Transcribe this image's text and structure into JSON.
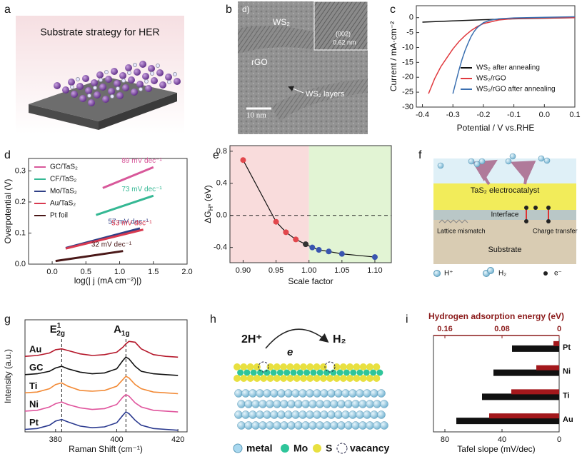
{
  "panel_labels": [
    "a",
    "b",
    "c",
    "d",
    "e",
    "f",
    "g",
    "h",
    "i"
  ],
  "panel_a": {
    "title": "Substrate strategy for HER"
  },
  "panel_b": {
    "label_d": "d)",
    "ws2": "WS₂",
    "rgo": "rGO",
    "plane": "(002)",
    "spacing": "0.62 nm",
    "layers": "WS₂ layers",
    "scale": "10 nm"
  },
  "panel_f": {
    "catalyst": "TaS₂ electrocatalyst",
    "interface": "Interface",
    "mismatch": "Lattice mismatch",
    "charge": "Charge transfer",
    "substrate": "Substrate",
    "legend": [
      "H⁺",
      "H₂",
      "e⁻"
    ]
  },
  "panel_h": {
    "reactant": "2H⁺",
    "electron": "e",
    "product": "H₂",
    "legend": [
      "metal",
      "Mo",
      "S",
      "vacancy"
    ]
  },
  "chart_data": [
    {
      "type": "line",
      "x_label": "Potential / V vs.RHE",
      "y_label": "Current / mA·cm⁻²",
      "xlim": [
        -0.42,
        0.1
      ],
      "ylim": [
        -30,
        4
      ],
      "xticks": [
        -0.4,
        -0.3,
        -0.2,
        -0.1,
        {
          "value": 0,
          "label": "0.0"
        },
        0.1
      ],
      "yticks": [
        0,
        -5,
        -10,
        -15,
        -20,
        -25,
        -30
      ],
      "legend": "lower right",
      "series": [
        {
          "name": "WS₂ after annealing",
          "color": "#111111",
          "x": [
            -0.4,
            -0.3,
            -0.2,
            -0.1,
            0.0,
            0.1
          ],
          "values": [
            -1.5,
            -1.1,
            -0.7,
            -0.4,
            -0.2,
            0
          ]
        },
        {
          "name": "WS₂/rGO",
          "color": "#e0393e",
          "x": [
            -0.38,
            -0.36,
            -0.34,
            -0.32,
            -0.3,
            -0.28,
            -0.26,
            -0.24,
            -0.22,
            -0.2,
            -0.15,
            -0.1,
            0.0,
            0.1
          ],
          "values": [
            -25.5,
            -20.5,
            -16.5,
            -13.5,
            -10.5,
            -8,
            -6,
            -4.3,
            -3,
            -2,
            -0.8,
            -0.3,
            -0.1,
            0
          ]
        },
        {
          "name": "WS₂/rGO after annealing",
          "color": "#3a6fb0",
          "x": [
            -0.3,
            -0.29,
            -0.28,
            -0.27,
            -0.26,
            -0.25,
            -0.24,
            -0.23,
            -0.22,
            -0.2,
            -0.18,
            -0.15,
            -0.1,
            0.0,
            0.1
          ],
          "values": [
            -25.5,
            -21.5,
            -17.5,
            -14,
            -11,
            -8.5,
            -6.3,
            -4.6,
            -3.3,
            -1.7,
            -0.9,
            -0.4,
            -0.1,
            0.1,
            0.3
          ]
        }
      ]
    },
    {
      "type": "line",
      "x_label": "log(| j (mA cm⁻²)|)",
      "y_label": "Overpotential (V)",
      "xlim": [
        -0.35,
        2.0
      ],
      "ylim": [
        0,
        0.34
      ],
      "xticks": [
        {
          "value": 0,
          "label": "0.0"
        },
        0.5,
        {
          "value": 1,
          "label": "1.0"
        },
        1.5,
        {
          "value": 2,
          "label": "2.0"
        }
      ],
      "yticks": [
        {
          "value": 0,
          "label": "0.0"
        },
        0.1,
        0.2,
        0.3
      ],
      "legend": "upper left",
      "series": [
        {
          "name": "GC/TaS₂",
          "color": "#d8589a",
          "x": [
            0.75,
            1.5
          ],
          "values": [
            0.245,
            0.312
          ],
          "annotation": "89 mV dec⁻¹"
        },
        {
          "name": "CF/TaS₂",
          "color": "#35b894",
          "x": [
            0.65,
            1.5
          ],
          "values": [
            0.158,
            0.22
          ],
          "annotation": "73 mV dec⁻¹"
        },
        {
          "name": "Mo/TaS₂",
          "color": "#2f3f86",
          "x": [
            0.2,
            1.3
          ],
          "values": [
            0.052,
            0.115
          ],
          "annotation": "57 mV dec⁻¹"
        },
        {
          "name": "Au/TaS₂",
          "color": "#d93a50",
          "x": [
            0.2,
            1.35
          ],
          "values": [
            0.05,
            0.111
          ],
          "annotation": "53 mV dec⁻¹"
        },
        {
          "name": "Pt foil",
          "color": "#4a1818",
          "x": [
            0.05,
            1.05
          ],
          "values": [
            0.01,
            0.042
          ],
          "annotation": "32 mV dec⁻¹"
        }
      ]
    },
    {
      "type": "line",
      "x_label": "Scale factor",
      "y_label": [
        "ΔG",
        "H*",
        " (eV)"
      ],
      "xlim": [
        0.88,
        1.125
      ],
      "ylim": [
        -0.59,
        0.87
      ],
      "xticks": [
        {
          "value": 0.9,
          "label": "0.90"
        },
        0.95,
        {
          "value": 1,
          "label": "1.00"
        },
        1.05,
        {
          "value": 1.1,
          "label": "1.10"
        }
      ],
      "yticks": [
        0.8,
        0.4,
        {
          "value": 0,
          "label": "0.0"
        },
        -0.4
      ],
      "markers": true,
      "hline": 0,
      "regions": [
        {
          "from": 0.88,
          "to": 1.0,
          "color": "#f9dcdc"
        },
        {
          "from": 1.0,
          "to": 1.125,
          "color": "#e2f4d4"
        }
      ],
      "series": [
        {
          "color": "#111111",
          "x": [
            0.9,
            0.95,
            0.965,
            0.98,
            0.995,
            1.005,
            1.015,
            1.03,
            1.05,
            1.1
          ],
          "values": [
            0.69,
            -0.08,
            -0.21,
            -0.3,
            -0.36,
            -0.4,
            -0.43,
            -0.45,
            -0.48,
            -0.52
          ],
          "point_colors": [
            "#e2474c",
            "#e2474c",
            "#e2474c",
            "#e2474c",
            "#333333",
            "#3a55b0",
            "#3a55b0",
            "#3a55b0",
            "#3a55b0",
            "#3a55b0"
          ]
        }
      ]
    },
    {
      "type": "line",
      "x_label": "Raman Shift (cm⁻¹)",
      "y_label": "Intensity (a.u.)",
      "xlim": [
        370,
        423
      ],
      "ylim": [
        0,
        13.5
      ],
      "xticks": [
        380,
        400,
        420
      ],
      "vlines": [
        382,
        403
      ],
      "peak_labels": [
        [
          "E",
          "1",
          "2g"
        ],
        [
          "A",
          "1g"
        ]
      ],
      "x": [
        370,
        374,
        378,
        380,
        382,
        384,
        388,
        392,
        396,
        400,
        402,
        403,
        404,
        406,
        408,
        412,
        416,
        420
      ],
      "series": [
        {
          "name": "Au",
          "color": "#b5182b",
          "values": [
            9.1,
            9.2,
            9.5,
            9.9,
            10.0,
            9.8,
            9.4,
            9.2,
            9.3,
            9.6,
            10.2,
            10.6,
            10.9,
            10.8,
            10.0,
            9.3,
            9.1,
            9.0
          ]
        },
        {
          "name": "GC",
          "color": "#111111",
          "values": [
            6.9,
            7.0,
            7.3,
            7.7,
            7.9,
            7.6,
            7.2,
            7.0,
            7.1,
            7.6,
            8.6,
            9.0,
            8.8,
            7.9,
            7.3,
            7.0,
            6.9,
            6.8
          ]
        },
        {
          "name": "Ti",
          "color": "#f28a36",
          "values": [
            4.7,
            4.8,
            5.2,
            5.7,
            5.9,
            5.5,
            5.0,
            4.9,
            5.0,
            5.5,
            6.3,
            6.7,
            6.5,
            5.7,
            5.2,
            4.8,
            4.7,
            4.6
          ]
        },
        {
          "name": "Ni",
          "color": "#e0559d",
          "values": [
            2.5,
            2.6,
            3.0,
            3.4,
            3.6,
            3.3,
            2.9,
            2.7,
            2.8,
            3.3,
            4.2,
            4.5,
            4.3,
            3.5,
            3.0,
            2.6,
            2.5,
            2.4
          ]
        },
        {
          "name": "Pt",
          "color": "#2b3a8f",
          "values": [
            0.3,
            0.4,
            0.8,
            1.3,
            1.5,
            1.2,
            0.7,
            0.5,
            0.6,
            1.1,
            2.0,
            2.4,
            2.2,
            1.4,
            0.8,
            0.4,
            0.3,
            0.2
          ]
        }
      ]
    },
    {
      "type": "bar",
      "orientation": "horizontal",
      "x_label": "Tafel slope (mV/dec)",
      "x2_label": "Hydrogen adsorption energy (eV)",
      "categories": [
        "Pt",
        "Ni",
        "Ti",
        "Au"
      ],
      "xlim": [
        88,
        0
      ],
      "xticks": [
        80,
        40,
        0
      ],
      "x2lim": [
        0.176,
        0
      ],
      "x2ticks": [
        0.16,
        0.08,
        0
      ],
      "series": [
        {
          "color": "#111111",
          "values": [
            33,
            46,
            54,
            72
          ]
        },
        {
          "color": "#a3181c",
          "axis": "x2",
          "values": [
            0.008,
            0.032,
            0.067,
            0.098
          ]
        }
      ]
    }
  ]
}
